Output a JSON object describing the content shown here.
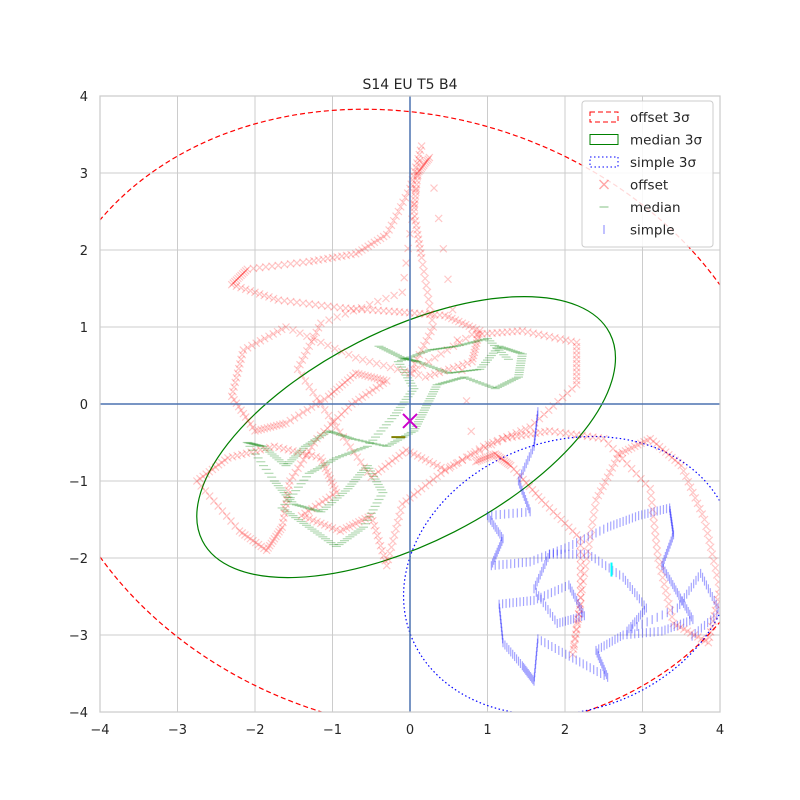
{
  "chart_data": {
    "type": "scatter",
    "title": "S14 EU T5 B4",
    "xlabel": "",
    "ylabel": "",
    "xlim": [
      -4,
      4
    ],
    "ylim": [
      -4,
      4
    ],
    "xticks": [
      "−4",
      "−3",
      "−2",
      "−1",
      "0",
      "1",
      "2",
      "3",
      "4"
    ],
    "yticks": [
      "−4",
      "−3",
      "−2",
      "−1",
      "0",
      "1",
      "2",
      "3",
      "4"
    ],
    "grid": true,
    "legend_position": "top-right",
    "legend": [
      {
        "label": "offset 3σ",
        "kind": "ellipse",
        "color": "#ff0000",
        "style": "dashed"
      },
      {
        "label": "median 3σ",
        "kind": "ellipse",
        "color": "#008000",
        "style": "solid"
      },
      {
        "label": "simple 3σ",
        "kind": "ellipse",
        "color": "#0000ff",
        "style": "dotted"
      },
      {
        "label": "offset",
        "kind": "marker",
        "marker": "x",
        "color": "#ff0000"
      },
      {
        "label": "median",
        "kind": "marker",
        "marker": "_",
        "color": "#008000"
      },
      {
        "label": "simple",
        "kind": "marker",
        "marker": "|",
        "color": "#0000ff"
      }
    ],
    "ellipses": [
      {
        "name": "offset 3σ",
        "center": [
          0.0,
          -0.22
        ],
        "semi_axes": [
          4.85,
          3.95
        ],
        "angle_deg": -18,
        "color": "#ff0000",
        "style": "dashed"
      },
      {
        "name": "median 3σ",
        "center": [
          -0.05,
          -0.43
        ],
        "semi_axes": [
          2.95,
          1.38
        ],
        "angle_deg": 27,
        "color": "#008000",
        "style": "solid"
      },
      {
        "name": "simple 3σ",
        "center": [
          2.05,
          -2.23
        ],
        "semi_axes": [
          2.18,
          1.75
        ],
        "angle_deg": 20,
        "color": "#0000ff",
        "style": "dotted"
      }
    ],
    "centers": [
      {
        "name": "mean",
        "x": 0.0,
        "y": -0.22,
        "marker": "x",
        "color": "#cc00cc"
      },
      {
        "name": "median mean",
        "x": -0.15,
        "y": -0.43,
        "marker": "_",
        "color": "#808000"
      },
      {
        "name": "simple mean",
        "x": 2.6,
        "y": -2.15,
        "marker": "|",
        "color": "#00ffff"
      }
    ],
    "series": [
      {
        "name": "offset",
        "marker": "x",
        "color": "#ff0000",
        "points": [
          [
            0.15,
            3.35
          ],
          [
            0.0,
            2.8
          ],
          [
            -0.3,
            2.2
          ],
          [
            -0.7,
            1.95
          ],
          [
            -1.3,
            1.85
          ],
          [
            -2.1,
            1.75
          ],
          [
            -2.3,
            1.55
          ],
          [
            -1.7,
            1.35
          ],
          [
            -0.9,
            1.25
          ],
          [
            -0.2,
            1.2
          ],
          [
            0.45,
            1.15
          ],
          [
            0.9,
            0.95
          ],
          [
            0.8,
            0.55
          ],
          [
            0.2,
            0.35
          ],
          [
            -0.7,
            0.6
          ],
          [
            -1.6,
            1.0
          ],
          [
            -2.15,
            0.7
          ],
          [
            -2.3,
            0.1
          ],
          [
            -2.0,
            -0.35
          ],
          [
            -1.6,
            -0.25
          ],
          [
            -1.05,
            0.1
          ],
          [
            -0.7,
            0.4
          ],
          [
            -0.3,
            0.3
          ],
          [
            -0.75,
            0.0
          ],
          [
            -1.2,
            -0.45
          ],
          [
            -1.55,
            -1.0
          ],
          [
            -1.65,
            -1.6
          ],
          [
            -1.85,
            -1.9
          ],
          [
            -2.2,
            -1.65
          ],
          [
            -2.75,
            -1.0
          ],
          [
            -2.35,
            -0.7
          ],
          [
            -1.75,
            -0.55
          ],
          [
            -1.15,
            -0.7
          ],
          [
            -0.95,
            -1.15
          ],
          [
            -1.4,
            -1.45
          ],
          [
            -0.9,
            -1.65
          ],
          [
            -0.5,
            -1.45
          ],
          [
            -0.3,
            -2.1
          ],
          [
            -0.1,
            -1.3
          ],
          [
            0.4,
            -0.9
          ],
          [
            0.95,
            -0.55
          ],
          [
            1.55,
            -0.3
          ],
          [
            2.15,
            0.25
          ],
          [
            2.15,
            0.8
          ],
          [
            1.45,
            0.95
          ],
          [
            0.8,
            0.9
          ],
          [
            0.0,
            0.4
          ],
          [
            0.3,
            1.0
          ],
          [
            0.15,
            1.9
          ],
          [
            0.05,
            2.5
          ],
          [
            0.1,
            3.0
          ],
          [
            0.25,
            3.2
          ],
          [
            0.85,
            -0.75
          ],
          [
            1.1,
            -0.65
          ],
          [
            1.3,
            -0.8
          ],
          [
            1.7,
            -1.25
          ],
          [
            2.2,
            -1.75
          ],
          [
            2.2,
            -2.6
          ],
          [
            2.1,
            -3.25
          ],
          [
            2.25,
            -2.2
          ],
          [
            2.4,
            -1.25
          ],
          [
            2.7,
            -0.65
          ],
          [
            3.1,
            -0.45
          ],
          [
            3.5,
            -0.8
          ],
          [
            3.8,
            -1.5
          ],
          [
            4.0,
            -2.4
          ],
          [
            3.85,
            -3.1
          ],
          [
            3.4,
            -2.85
          ],
          [
            3.2,
            -2.0
          ],
          [
            3.1,
            -1.1
          ],
          [
            2.5,
            -0.45
          ],
          [
            1.8,
            -0.35
          ],
          [
            1.2,
            -0.45
          ],
          [
            0.45,
            -0.85
          ],
          [
            -0.05,
            -0.6
          ],
          [
            -0.5,
            -0.95
          ],
          [
            -0.95,
            -0.3
          ],
          [
            -1.45,
            0.45
          ],
          [
            -1.15,
            1.05
          ],
          [
            -0.1,
            1.45
          ]
        ]
      },
      {
        "name": "median",
        "marker": "_",
        "color": "#008000",
        "points": [
          [
            -0.4,
            0.75
          ],
          [
            -0.1,
            0.6
          ],
          [
            0.1,
            0.55
          ],
          [
            0.5,
            0.4
          ],
          [
            0.9,
            0.45
          ],
          [
            1.15,
            0.75
          ],
          [
            1.45,
            0.65
          ],
          [
            1.4,
            0.35
          ],
          [
            1.1,
            0.2
          ],
          [
            0.7,
            0.35
          ],
          [
            0.35,
            0.25
          ],
          [
            0.2,
            -0.05
          ],
          [
            0.05,
            -0.35
          ],
          [
            -0.3,
            -0.55
          ],
          [
            -0.75,
            -0.45
          ],
          [
            -1.05,
            -0.35
          ],
          [
            -1.35,
            -0.55
          ],
          [
            -1.6,
            -0.8
          ],
          [
            -1.9,
            -0.55
          ],
          [
            -2.1,
            -0.5
          ],
          [
            -1.75,
            -1.0
          ],
          [
            -1.5,
            -1.3
          ],
          [
            -1.15,
            -1.4
          ],
          [
            -0.8,
            -1.1
          ],
          [
            -0.55,
            -0.8
          ],
          [
            -0.35,
            -1.15
          ],
          [
            -0.6,
            -1.6
          ],
          [
            -0.95,
            -1.85
          ],
          [
            -1.3,
            -1.6
          ],
          [
            -1.65,
            -1.35
          ],
          [
            -1.3,
            -0.9
          ],
          [
            -0.95,
            -0.7
          ],
          [
            -0.55,
            -0.55
          ],
          [
            -0.2,
            -0.15
          ],
          [
            0.05,
            0.2
          ],
          [
            -0.15,
            0.55
          ],
          [
            0.25,
            0.7
          ],
          [
            0.6,
            0.75
          ],
          [
            1.0,
            0.85
          ],
          [
            1.3,
            0.55
          ]
        ]
      },
      {
        "name": "simple",
        "marker": "|",
        "color": "#0000ff",
        "points": [
          [
            1.65,
            -0.1
          ],
          [
            1.6,
            -0.55
          ],
          [
            1.4,
            -1.0
          ],
          [
            1.55,
            -1.4
          ],
          [
            1.0,
            -1.45
          ],
          [
            1.2,
            -1.75
          ],
          [
            1.05,
            -2.1
          ],
          [
            1.55,
            -2.05
          ],
          [
            2.05,
            -1.85
          ],
          [
            2.55,
            -1.6
          ],
          [
            2.95,
            -1.45
          ],
          [
            3.35,
            -1.35
          ],
          [
            3.4,
            -1.7
          ],
          [
            3.25,
            -2.1
          ],
          [
            3.45,
            -2.45
          ],
          [
            3.65,
            -2.8
          ],
          [
            3.25,
            -2.95
          ],
          [
            2.75,
            -3.0
          ],
          [
            2.4,
            -3.2
          ],
          [
            2.55,
            -3.55
          ],
          [
            2.1,
            -3.3
          ],
          [
            1.65,
            -3.05
          ],
          [
            1.6,
            -3.6
          ],
          [
            1.45,
            -3.4
          ],
          [
            1.2,
            -3.1
          ],
          [
            1.15,
            -2.6
          ],
          [
            1.6,
            -2.55
          ],
          [
            2.05,
            -2.35
          ],
          [
            2.25,
            -2.75
          ],
          [
            1.9,
            -2.85
          ],
          [
            1.6,
            -2.4
          ],
          [
            1.8,
            -1.95
          ],
          [
            2.3,
            -1.95
          ],
          [
            2.75,
            -2.25
          ],
          [
            3.05,
            -2.65
          ],
          [
            2.8,
            -2.95
          ],
          [
            3.45,
            -2.65
          ],
          [
            3.75,
            -2.2
          ],
          [
            4.0,
            -2.7
          ],
          [
            3.6,
            -3.05
          ]
        ]
      }
    ]
  }
}
